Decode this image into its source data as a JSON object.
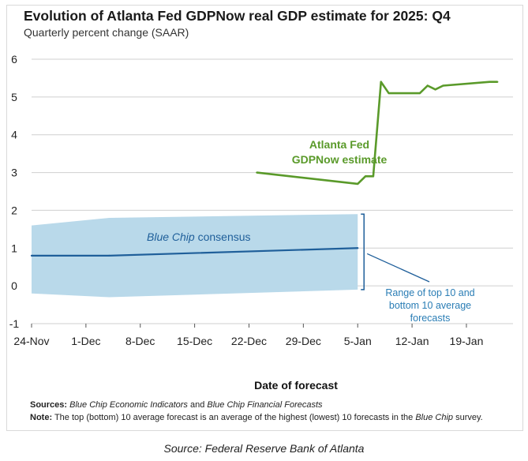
{
  "title": "Evolution of Atlanta Fed GDPNow real GDP estimate for 2025: Q4",
  "subtitle": "Quarterly percent change (SAAR)",
  "notes": {
    "sources_label": "Sources:",
    "sources_italic_1": "Blue Chip Economic Indicators",
    "sources_and": " and ",
    "sources_italic_2": "Blue Chip Financial Forecasts",
    "note_label": "Note:",
    "note_text_1": " The top (bottom) 10 average forecast is an average of the highest (lowest) 10 forecasts in the ",
    "note_italic": "Blue Chip",
    "note_text_2": " survey."
  },
  "source_caption": "Source: Federal Reserve Bank of Atlanta",
  "colors": {
    "gdpnow": "#5a9a2a",
    "consensus": "#1f5f9a",
    "range_fill": "#b9d9ea",
    "annotation": "#2a7db5",
    "grid": "#cfcfcf"
  },
  "chart_data": {
    "type": "line",
    "xlabel": "Date of forecast",
    "ylabel": "",
    "ylim": [
      -1,
      6
    ],
    "yticks": [
      "6",
      "5",
      "4",
      "3",
      "2",
      "1",
      "0",
      "-1"
    ],
    "x_tick_labels": [
      "24-Nov",
      "1-Dec",
      "8-Dec",
      "15-Dec",
      "22-Dec",
      "29-Dec",
      "5-Jan",
      "12-Jan",
      "19-Jan"
    ],
    "x_tick_days": [
      0,
      7,
      14,
      21,
      28,
      35,
      42,
      49,
      56
    ],
    "xlim_days": [
      0,
      62
    ],
    "grid": "horizontal",
    "series": [
      {
        "name": "GDPNow",
        "points": [
          {
            "x": "23-Dec",
            "day": 29,
            "y": 3.0
          },
          {
            "x": "5-Jan",
            "day": 42,
            "y": 2.7
          },
          {
            "x": "6-Jan",
            "day": 43,
            "y": 2.9
          },
          {
            "x": "7-Jan",
            "day": 44,
            "y": 2.9
          },
          {
            "x": "8-Jan",
            "day": 45,
            "y": 5.4
          },
          {
            "x": "9-Jan",
            "day": 46,
            "y": 5.1
          },
          {
            "x": "13-Jan",
            "day": 50,
            "y": 5.1
          },
          {
            "x": "14-Jan",
            "day": 51,
            "y": 5.3
          },
          {
            "x": "15-Jan",
            "day": 52,
            "y": 5.2
          },
          {
            "x": "16-Jan",
            "day": 53,
            "y": 5.3
          },
          {
            "x": "22-Jan",
            "day": 59,
            "y": 5.4
          },
          {
            "x": "23-Jan",
            "day": 60,
            "y": 5.4
          }
        ]
      },
      {
        "name": "Blue Chip consensus",
        "points": [
          {
            "x": "24-Nov",
            "day": 0,
            "y": 0.8
          },
          {
            "x": "4-Dec",
            "day": 10,
            "y": 0.8
          },
          {
            "x": "5-Jan",
            "day": 42,
            "y": 1.0
          }
        ]
      }
    ],
    "range_band": {
      "upper": [
        {
          "x": "24-Nov",
          "day": 0,
          "y": 1.6
        },
        {
          "x": "4-Dec",
          "day": 10,
          "y": 1.8
        },
        {
          "x": "5-Jan",
          "day": 42,
          "y": 1.9
        }
      ],
      "lower": [
        {
          "x": "24-Nov",
          "day": 0,
          "y": -0.2
        },
        {
          "x": "4-Dec",
          "day": 10,
          "y": -0.3
        },
        {
          "x": "5-Jan",
          "day": 42,
          "y": -0.1
        }
      ]
    },
    "annotations": {
      "gdpnow_label_line1": "Atlanta Fed",
      "gdpnow_label_line2": "GDPNow estimate",
      "consensus_label_italic": "Blue Chip",
      "consensus_label_rest": " consensus",
      "range_label_line1": "Range of top 10 and",
      "range_label_line2": "bottom 10 average",
      "range_label_line3": "forecasts"
    }
  }
}
